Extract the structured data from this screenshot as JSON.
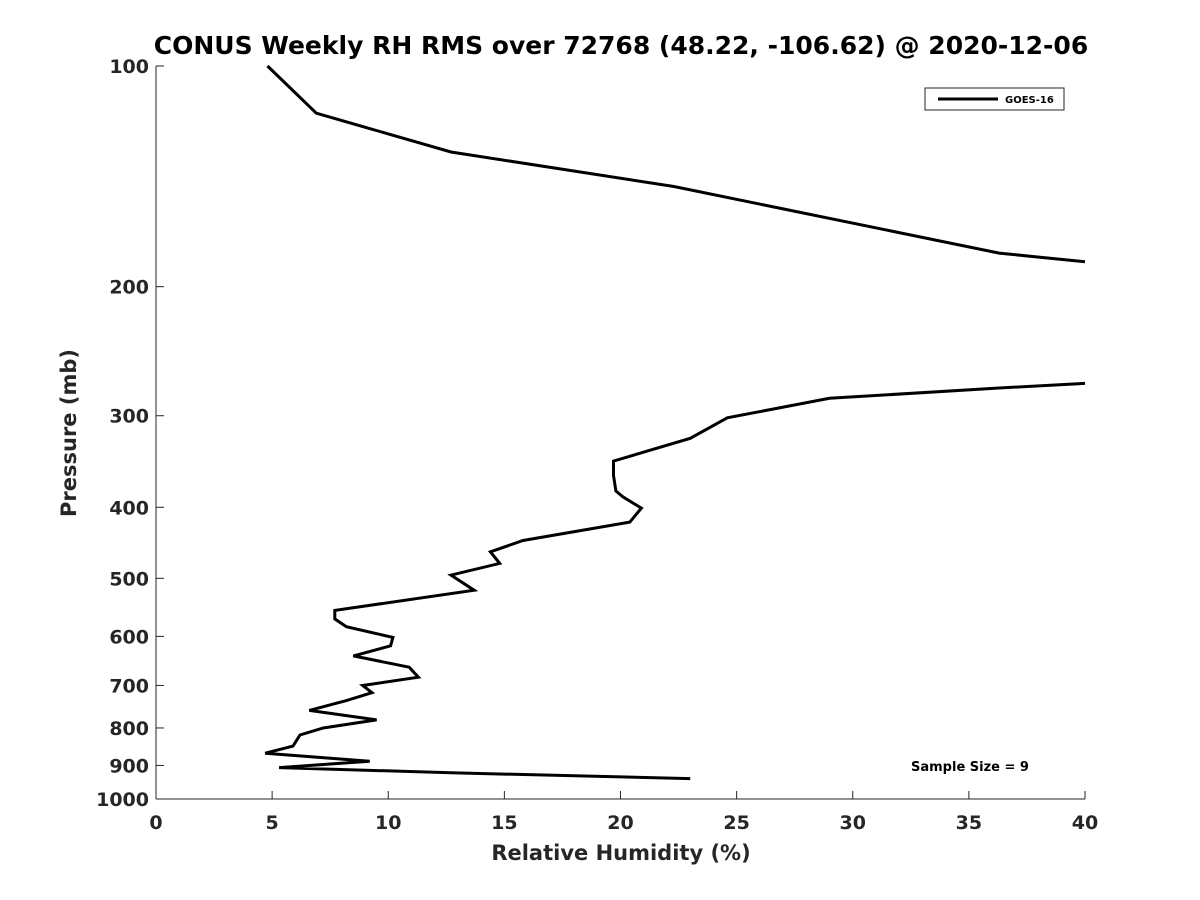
{
  "chart_data": {
    "type": "line",
    "title": "CONUS Weekly RH RMS over 72768 (48.22, -106.62) @ 2020-12-06",
    "xlabel": "Relative Humidity (%)",
    "ylabel": "Pressure (mb)",
    "xlim": [
      0,
      40
    ],
    "ylim": [
      100,
      1000
    ],
    "y_scale": "log",
    "y_reversed": true,
    "grid": false,
    "legend_position": "top-right",
    "x_ticks": [
      "0",
      "5",
      "10",
      "15",
      "20",
      "25",
      "30",
      "35",
      "40"
    ],
    "y_ticks": [
      "100",
      "200",
      "300",
      "400",
      "500",
      "600",
      "700",
      "800",
      "900",
      "1000"
    ],
    "annotation": "Sample Size = 9",
    "series": [
      {
        "name": "GOES-16",
        "color": "#000000",
        "segments": [
          {
            "x": [
              4.8,
              6.9,
              12.7,
              22.3,
              36.3,
              40.0
            ],
            "y": [
              100,
              116,
              131,
              146,
              180,
              185
            ]
          },
          {
            "x": [
              40.0,
              36.3,
              29.0,
              24.6,
              23.0,
              19.7,
              19.7,
              19.8,
              20.1,
              20.9,
              20.4,
              15.8,
              14.4,
              14.8,
              12.7,
              13.7,
              7.7,
              7.7,
              8.2,
              10.2,
              10.1,
              8.5,
              10.9,
              11.3,
              8.9,
              9.3,
              8.2,
              6.6,
              9.5,
              7.2,
              6.2,
              5.9,
              4.7,
              9.2,
              5.3,
              12.7,
              23.0
            ],
            "y": [
              271,
              275,
              284,
              302,
              322,
              346,
              362,
              380,
              387,
              401,
              419,
              444,
              460,
              477,
              495,
              519,
              553,
              568,
              582,
              602,
              618,
              638,
              661,
              682,
              700,
              716,
              734,
              757,
              780,
              800,
              818,
              847,
              866,
              888,
              906,
              921,
              938
            ]
          }
        ]
      }
    ]
  }
}
